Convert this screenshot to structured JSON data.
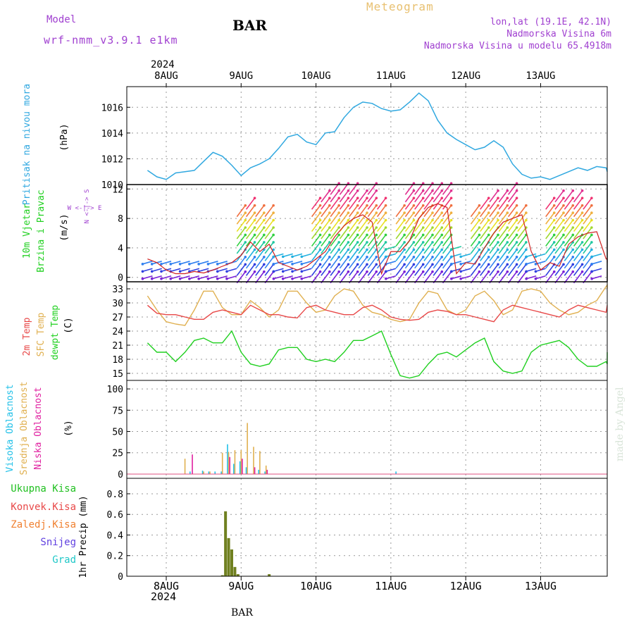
{
  "header": {
    "model_label": "Model",
    "model_name": "wrf-nmm_v3.9.1 e1km",
    "station": "BAR",
    "product": "Meteogram",
    "coords": "lon,lat (19.1E, 42.1N)",
    "elevation": "Nadmorska Visina 6m",
    "model_elevation": "Nadmorska Visina u modelu 65.4918m"
  },
  "footer": {
    "station": "BAR",
    "credit": "made by Angel"
  },
  "time_axis": {
    "year": "2024",
    "days": [
      "8AUG",
      "9AUG",
      "10AUG",
      "11AUG",
      "12AUG",
      "13AUG"
    ],
    "hours_range": [
      0,
      144
    ]
  },
  "colors": {
    "pressure": "#30a8e0",
    "temp2m": "#e84848",
    "sfc": "#e0b050",
    "dew": "#20d020",
    "high_cloud": "#20c0e8",
    "mid_cloud": "#e0b050",
    "low_cloud": "#e020a0",
    "total_precip": "#20c020",
    "conv": "#e84848",
    "frozen": "#f08030",
    "snow": "#6040e0",
    "hail": "#20c8c8"
  },
  "chart_data": [
    {
      "type": "line",
      "panel": "pressure",
      "ylabel_name": "Pritisak na nivou mora",
      "ylabel_unit": "(hPa)",
      "ylim": [
        1010,
        1017.6
      ],
      "yticks": [
        "1010",
        "1012",
        "1014",
        "1016"
      ],
      "grid": true,
      "series": [
        {
          "x": [
            -6,
            -3,
            0,
            3,
            6,
            9,
            12,
            15,
            18,
            21,
            24,
            27,
            30,
            33,
            36,
            39,
            42,
            45,
            48,
            51,
            54,
            57,
            60,
            63,
            66,
            69,
            72,
            75,
            78,
            81,
            84,
            87,
            90,
            93,
            96,
            99,
            102,
            105,
            108,
            111,
            114,
            117,
            120,
            123,
            126,
            129,
            132,
            135,
            138,
            141,
            144,
            147
          ],
          "values": [
            1011.1,
            1010.6,
            1010.4,
            1010.9,
            1011.0,
            1011.1,
            1011.8,
            1012.5,
            1012.2,
            1011.5,
            1010.7,
            1011.3,
            1011.6,
            1012.0,
            1012.8,
            1013.7,
            1013.9,
            1013.3,
            1013.1,
            1014.0,
            1014.1,
            1015.2,
            1016.0,
            1016.4,
            1016.3,
            1015.9,
            1015.7,
            1015.8,
            1016.4,
            1017.1,
            1016.5,
            1015.0,
            1014.0,
            1013.5,
            1013.1,
            1012.7,
            1012.9,
            1013.4,
            1012.9,
            1011.6,
            1010.8,
            1010.5,
            1010.6,
            1010.4,
            1010.7,
            1011.0,
            1011.3,
            1011.1,
            1011.4,
            1011.3,
            1011.0,
            1011.0
          ]
        }
      ]
    },
    {
      "type": "line",
      "panel": "wind",
      "ylabel_name": "10m Vjetar",
      "ylabel_sub": "Brzina i Pravac",
      "ylabel_unit": "(m/s)",
      "compass_ns": "N <-|-> S",
      "compass_we": "W <-|-> E",
      "ylim": [
        -0.6,
        12.6
      ],
      "yticks": [
        "0",
        "4",
        "8",
        "12"
      ],
      "grid": true,
      "series": [
        {
          "name": "speed",
          "x": [
            -6,
            -3,
            0,
            3,
            6,
            9,
            12,
            15,
            18,
            21,
            24,
            27,
            30,
            33,
            36,
            39,
            42,
            45,
            48,
            51,
            54,
            57,
            60,
            63,
            66,
            69,
            72,
            75,
            78,
            81,
            84,
            87,
            90,
            93,
            96,
            99,
            102,
            105,
            108,
            111,
            114,
            117,
            120,
            123,
            126,
            129,
            132,
            135,
            138,
            141,
            144,
            147
          ],
          "values": [
            2.5,
            2.0,
            1.0,
            0.5,
            0.5,
            0.8,
            0.6,
            1.0,
            1.5,
            2.0,
            3.0,
            4.8,
            3.5,
            4.5,
            2.0,
            1.5,
            1.0,
            1.5,
            2.5,
            3.5,
            5.5,
            7.0,
            8.0,
            8.5,
            7.5,
            0.5,
            3.5,
            3.5,
            5.0,
            8.0,
            9.5,
            10.0,
            9.5,
            0.5,
            2.0,
            1.8,
            4.0,
            6.0,
            7.5,
            8.0,
            8.5,
            3.5,
            1.0,
            2.0,
            1.5,
            4.5,
            5.5,
            6.0,
            6.2,
            2.5,
            2.5,
            2.0
          ]
        },
        {
          "name": "arrow_rows",
          "x": [
            -6,
            -3,
            0,
            3,
            6,
            9,
            12,
            15,
            18,
            21,
            24,
            27,
            30,
            33,
            36,
            39,
            42,
            45,
            48,
            51,
            54,
            57,
            60,
            63,
            66,
            69,
            72,
            75,
            78,
            81,
            84,
            87,
            90,
            93,
            96,
            99,
            102,
            105,
            108,
            111,
            114,
            117,
            120,
            123,
            126,
            129,
            132,
            135,
            138,
            141,
            144,
            147
          ],
          "values": [
            2,
            2,
            2,
            2,
            2,
            2,
            2,
            2,
            2,
            2,
            9,
            10,
            9,
            9,
            3,
            3,
            3,
            3,
            10,
            11,
            12,
            12,
            12,
            11,
            12,
            10,
            4,
            9,
            12,
            12,
            12,
            12,
            12,
            4,
            3,
            9,
            10,
            11,
            11,
            12,
            9,
            3,
            3,
            10,
            11,
            11,
            11,
            10,
            3,
            3,
            3,
            3
          ]
        }
      ]
    },
    {
      "type": "line",
      "panel": "temperature",
      "ylabel_a": "2m Temp",
      "ylabel_b": "SFC Temp",
      "ylabel_c": "dewpt Temp",
      "ylabel_unit": "(C)",
      "ylim": [
        13.5,
        34.5
      ],
      "yticks": [
        "15",
        "18",
        "21",
        "24",
        "27",
        "30",
        "33"
      ],
      "grid": true,
      "series": [
        {
          "name": "2m",
          "x": [
            -6,
            -3,
            0,
            3,
            6,
            9,
            12,
            15,
            18,
            21,
            24,
            27,
            30,
            33,
            36,
            39,
            42,
            45,
            48,
            51,
            54,
            57,
            60,
            63,
            66,
            69,
            72,
            75,
            78,
            81,
            84,
            87,
            90,
            93,
            96,
            99,
            102,
            105,
            108,
            111,
            114,
            117,
            120,
            123,
            126,
            129,
            132,
            135,
            138,
            141,
            144,
            147
          ],
          "values": [
            29.5,
            27.8,
            27.5,
            27.5,
            27.0,
            26.5,
            26.5,
            28.0,
            28.5,
            28.0,
            27.5,
            29.5,
            28.5,
            27.5,
            27.5,
            27.0,
            26.8,
            29.0,
            29.5,
            28.5,
            28.0,
            27.5,
            27.5,
            29.0,
            29.5,
            28.5,
            27.0,
            26.5,
            26.3,
            26.5,
            28.0,
            28.5,
            28.2,
            27.5,
            27.5,
            27.0,
            26.5,
            26.0,
            28.5,
            29.5,
            29.0,
            28.5,
            28.0,
            27.5,
            27.0,
            28.5,
            29.5,
            29.0,
            28.5,
            28.0,
            29.5,
            29.5
          ]
        },
        {
          "name": "sfc",
          "x": [
            -6,
            -3,
            0,
            3,
            6,
            9,
            12,
            15,
            18,
            21,
            24,
            27,
            30,
            33,
            36,
            39,
            42,
            45,
            48,
            51,
            54,
            57,
            60,
            63,
            66,
            69,
            72,
            75,
            78,
            81,
            84,
            87,
            90,
            93,
            96,
            99,
            102,
            105,
            108,
            111,
            114,
            117,
            120,
            123,
            126,
            129,
            132,
            135,
            138,
            141,
            144,
            147
          ],
          "values": [
            31.5,
            28.5,
            26.0,
            25.5,
            25.2,
            28.5,
            32.5,
            32.5,
            29.0,
            27.5,
            27.5,
            30.5,
            29.0,
            27.0,
            28.5,
            32.5,
            32.5,
            30.0,
            28.0,
            28.5,
            31.5,
            33.0,
            32.5,
            29.5,
            28.0,
            27.5,
            26.5,
            26.0,
            26.5,
            30.0,
            32.5,
            32.0,
            28.5,
            27.5,
            28.5,
            31.5,
            32.5,
            30.5,
            27.5,
            28.5,
            32.5,
            33.0,
            32.5,
            30.0,
            28.5,
            27.5,
            28.0,
            29.5,
            30.5,
            33.5,
            33.8,
            33.0
          ]
        },
        {
          "name": "dew",
          "x": [
            -6,
            -3,
            0,
            3,
            6,
            9,
            12,
            15,
            18,
            21,
            24,
            27,
            30,
            33,
            36,
            39,
            42,
            45,
            48,
            51,
            54,
            57,
            60,
            63,
            66,
            69,
            72,
            75,
            78,
            81,
            84,
            87,
            90,
            93,
            96,
            99,
            102,
            105,
            108,
            111,
            114,
            117,
            120,
            123,
            126,
            129,
            132,
            135,
            138,
            141,
            144,
            147
          ],
          "values": [
            21.5,
            19.5,
            19.5,
            17.5,
            19.5,
            22.0,
            22.5,
            21.5,
            21.5,
            24.0,
            19.5,
            17.0,
            16.5,
            17.0,
            20.0,
            20.5,
            20.5,
            18.0,
            17.5,
            18.0,
            17.5,
            19.5,
            22.0,
            22.0,
            23.0,
            24.0,
            19.0,
            14.5,
            14.0,
            14.5,
            17.0,
            19.0,
            19.5,
            18.5,
            20.0,
            21.5,
            22.5,
            17.5,
            15.5,
            15.0,
            15.5,
            19.5,
            21.0,
            21.5,
            22.0,
            20.5,
            18.0,
            16.5,
            16.5,
            17.5,
            17.0,
            19.5
          ]
        }
      ]
    },
    {
      "type": "bar",
      "panel": "cloud",
      "ylabel_a": "Visoka Oblacnost",
      "ylabel_b": "Srednja Oblacnost",
      "ylabel_c": "Niska Oblacnost",
      "ylabel_unit": "(%)",
      "ylim": [
        -5,
        110
      ],
      "yticks": [
        "0",
        "25",
        "50",
        "75",
        "100"
      ],
      "grid": true,
      "series": [
        {
          "name": "high",
          "x": [
            8,
            12,
            14,
            16,
            18,
            20,
            22,
            24,
            26,
            30,
            32,
            74
          ],
          "values": [
            3,
            4,
            3,
            3,
            3,
            35,
            12,
            15,
            8,
            5,
            3,
            3
          ]
        },
        {
          "name": "mid",
          "x": [
            6,
            12,
            14,
            18,
            20,
            22,
            24,
            26,
            28,
            30,
            32
          ],
          "values": [
            18,
            3,
            3,
            25,
            26,
            28,
            28,
            60,
            32,
            27,
            10
          ]
        },
        {
          "name": "low",
          "x": [
            8,
            20,
            24,
            28,
            32
          ],
          "values": [
            23,
            20,
            18,
            8,
            5
          ]
        }
      ]
    },
    {
      "type": "bar",
      "panel": "precip",
      "label_total": "Ukupna Kisa",
      "label_conv": "Konvek.Kisa",
      "label_frozen": "Zaledj.Kisa",
      "label_snow": "Snijeg",
      "label_hail": "Grad",
      "ylabel": "1hr Precip (mm)",
      "ylim": [
        0,
        0.95
      ],
      "yticks": [
        "0",
        "0.2",
        "0.4",
        "0.6",
        "0.8"
      ],
      "grid": true,
      "series": [
        {
          "name": "total",
          "x": [
            18,
            19,
            20,
            21,
            22,
            23,
            33
          ],
          "values": [
            0.01,
            0.63,
            0.37,
            0.26,
            0.09,
            0.02,
            0.02
          ]
        }
      ]
    }
  ]
}
